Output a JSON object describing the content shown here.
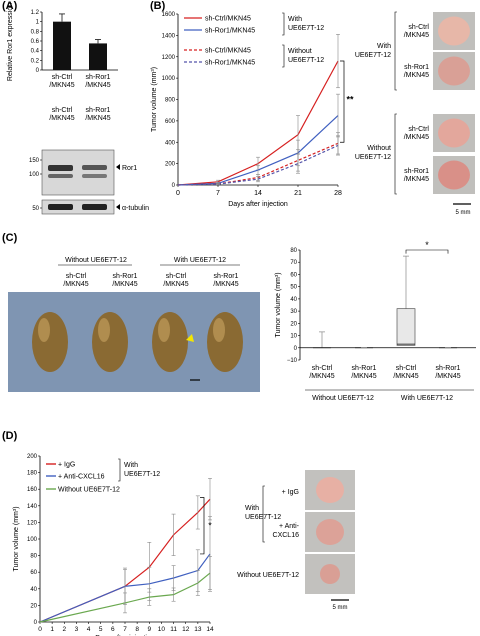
{
  "panels": {
    "A": {
      "label": "(A)"
    },
    "B": {
      "label": "(B)"
    },
    "C": {
      "label": "(C)"
    },
    "D": {
      "label": "(D)"
    }
  },
  "panelA": {
    "chart_data": {
      "type": "bar",
      "categories": [
        "sh-Ctrl /MKN45",
        "sh-Ror1 /MKN45"
      ],
      "values": [
        1.0,
        0.55
      ],
      "errors": [
        0.16,
        0.08
      ],
      "ylabel": "Relative Ror1 expression",
      "ylim": [
        0,
        1.2
      ],
      "yticks": [
        "0",
        "0.2",
        "0.4",
        "0.6",
        "0.8",
        "1",
        "1.2"
      ]
    },
    "blot": {
      "lanes": [
        "sh-Ctrl /MKN45",
        "sh-Ror1 /MKN45"
      ],
      "markers": [
        "150",
        "100",
        "50"
      ],
      "band_ror1": "Ror1",
      "band_tubulin": "α-tubulin"
    }
  },
  "panelB": {
    "chart_data": {
      "type": "line",
      "x": [
        0,
        7,
        14,
        21,
        28
      ],
      "xlabel": "Days after injection",
      "ylabel": "Tumor volume (mm³)",
      "ylim": [
        0,
        1600
      ],
      "yticks": [
        "0",
        "200",
        "400",
        "600",
        "800",
        "1000",
        "1200",
        "1400",
        "1600"
      ],
      "series": [
        {
          "name": "sh-Ctrl/MKN45",
          "values": [
            0,
            30,
            200,
            470,
            1160
          ],
          "errors": [
            0,
            15,
            60,
            180,
            250
          ],
          "color": "#d62020",
          "dash": false
        },
        {
          "name": "sh-Ror1/MKN45",
          "values": [
            0,
            15,
            140,
            300,
            650
          ],
          "errors": [
            0,
            10,
            40,
            120,
            200
          ],
          "color": "#4060c0",
          "dash": false
        },
        {
          "name": "sh-Ctrl/MKN45",
          "values": [
            0,
            10,
            70,
            230,
            390
          ],
          "errors": [
            0,
            5,
            30,
            100,
            100
          ],
          "color": "#d62020",
          "dash": true
        },
        {
          "name": "sh-Ror1/MKN45",
          "values": [
            0,
            8,
            55,
            200,
            370
          ],
          "errors": [
            0,
            5,
            25,
            90,
            90
          ],
          "color": "#5555aa",
          "dash": true
        }
      ],
      "annotations": [
        "With UE6E7T-12",
        "Without UE6E7T-12",
        "**"
      ]
    },
    "photos": {
      "with_label": "With UE6E7T-12",
      "without_label": "Without UE6E7T-12",
      "row_labels": [
        "sh-Ctrl /MKN45",
        "sh-Ror1 /MKN45",
        "sh-Ctrl /MKN45",
        "sh-Ror1 /MKN45"
      ],
      "scale": "5 mm"
    }
  },
  "panelC": {
    "photo": {
      "without_label": "Without UE6E7T-12",
      "with_label": "With UE6E7T-12",
      "col_labels": [
        "sh-Ctrl /MKN45",
        "sh-Ror1 /MKN45",
        "sh-Ctrl /MKN45",
        "sh-Ror1 /MKN45"
      ],
      "scale": "5 mm"
    },
    "chart_data": {
      "type": "box",
      "categories": [
        "sh-Ctrl /MKN45",
        "sh-Ror1 /MKN45",
        "sh-Ctrl /MKN45",
        "sh-Ror1 /MKN45"
      ],
      "groups": [
        "Without UE6E7T-12",
        "With UE6E7T-12"
      ],
      "boxes": [
        {
          "min": 0,
          "q1": 0,
          "median": 0,
          "q3": 0,
          "max": 13
        },
        {
          "min": 0,
          "q1": 0,
          "median": 0,
          "q3": 0,
          "max": 0
        },
        {
          "min": 0,
          "q1": 2,
          "median": 3,
          "q3": 32,
          "max": 75
        },
        {
          "min": 0,
          "q1": 0,
          "median": 0,
          "q3": 0,
          "max": 0
        }
      ],
      "ylabel": "Tumor volume (mm³)",
      "ylim": [
        -10,
        80
      ],
      "yticks": [
        "−10",
        "0",
        "10",
        "20",
        "30",
        "40",
        "50",
        "60",
        "70",
        "80"
      ],
      "significance": "*"
    }
  },
  "panelD": {
    "chart_data": {
      "type": "line",
      "x": [
        0,
        7,
        9,
        11,
        13,
        14
      ],
      "xticks": [
        "0",
        "1",
        "2",
        "3",
        "4",
        "5",
        "6",
        "7",
        "8",
        "9",
        "10",
        "11",
        "12",
        "13",
        "14"
      ],
      "xlabel": "Days after injection",
      "ylabel": "Tumor volume (mm³)",
      "ylim": [
        0,
        200
      ],
      "yticks": [
        "0",
        "20",
        "40",
        "60",
        "80",
        "100",
        "120",
        "140",
        "160",
        "180",
        "200"
      ],
      "series": [
        {
          "name": "IgG",
          "values": [
            0,
            43,
            66,
            105,
            132,
            148
          ],
          "errors": [
            0,
            20,
            30,
            25,
            20,
            25
          ],
          "color": "#d62020"
        },
        {
          "name": "Anti-CXCL16",
          "values": [
            0,
            43,
            46,
            53,
            62,
            82
          ],
          "errors": [
            0,
            22,
            20,
            15,
            25,
            45
          ],
          "color": "#4060c0"
        },
        {
          "name": "Without UE6E7T-12",
          "values": [
            0,
            23,
            30,
            33,
            47,
            59
          ],
          "errors": [
            0,
            12,
            10,
            8,
            15,
            20
          ],
          "color": "#6aa84f"
        }
      ],
      "legend": [
        "+ IgG",
        "+ Anti-CXCL16",
        "Without UE6E7T-12"
      ],
      "bracket_label": "With UE6E7T-12",
      "significance": "*"
    },
    "photos": {
      "with_label": "With UE6E7T-12",
      "row_labels": [
        "+ IgG",
        "+ Anti- CXCL16",
        "Without UE6E7T-12"
      ],
      "scale": "5 mm"
    }
  }
}
